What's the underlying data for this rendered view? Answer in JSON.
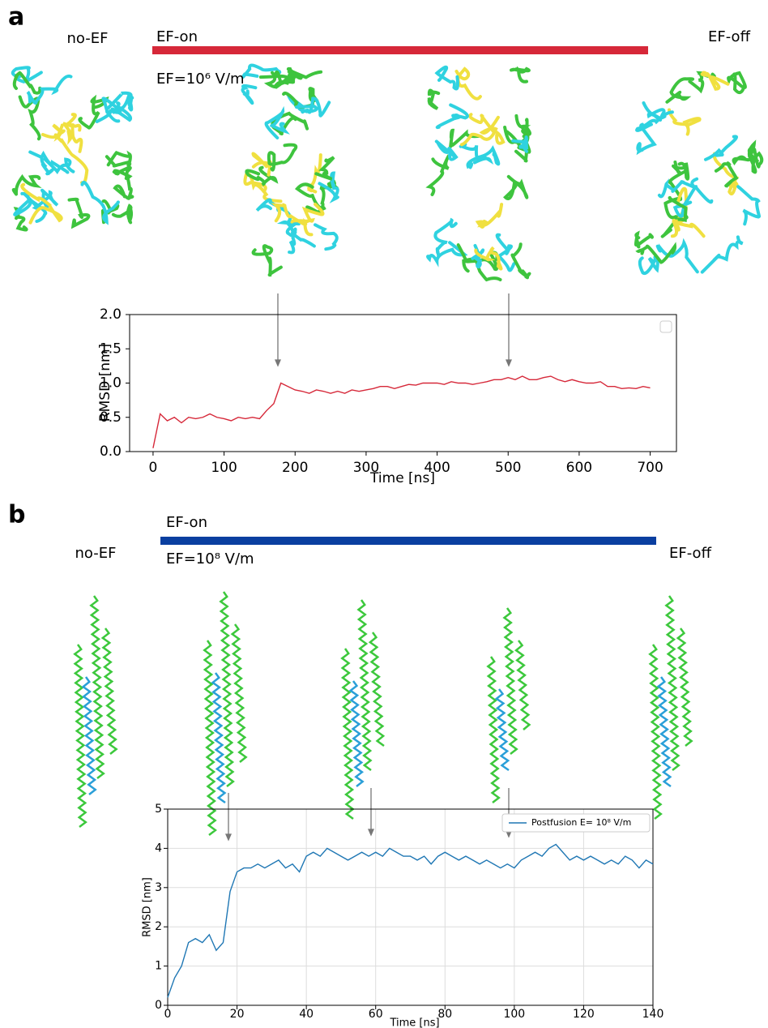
{
  "chart_data": [
    {
      "type": "line",
      "panel_label": "a",
      "annotations": [
        "no-EF",
        "EF-on",
        "EF=10⁶ V/m",
        "EF-off"
      ],
      "accent_color": "#d62839",
      "xlabel": "Time [ns]",
      "ylabel": "RMSD [nm]",
      "x": [
        0,
        10,
        20,
        30,
        40,
        50,
        60,
        70,
        80,
        90,
        100,
        110,
        120,
        130,
        140,
        150,
        160,
        170,
        180,
        190,
        200,
        210,
        220,
        230,
        240,
        250,
        260,
        270,
        280,
        290,
        300,
        310,
        320,
        330,
        340,
        350,
        360,
        370,
        380,
        390,
        400,
        410,
        420,
        430,
        440,
        450,
        460,
        470,
        480,
        490,
        500,
        510,
        520,
        530,
        540,
        550,
        560,
        570,
        580,
        590,
        600,
        610,
        620,
        630,
        640,
        650,
        660,
        670,
        680,
        690,
        700
      ],
      "series": [
        {
          "color": "#d62839",
          "values": [
            0.05,
            0.55,
            0.45,
            0.5,
            0.42,
            0.5,
            0.48,
            0.5,
            0.55,
            0.5,
            0.48,
            0.45,
            0.5,
            0.48,
            0.5,
            0.48,
            0.6,
            0.7,
            1.0,
            0.95,
            0.9,
            0.88,
            0.85,
            0.9,
            0.88,
            0.85,
            0.88,
            0.85,
            0.9,
            0.88,
            0.9,
            0.92,
            0.95,
            0.95,
            0.92,
            0.95,
            0.98,
            0.97,
            1.0,
            1.0,
            1.0,
            0.98,
            1.02,
            1.0,
            1.0,
            0.98,
            1.0,
            1.02,
            1.05,
            1.05,
            1.08,
            1.05,
            1.1,
            1.05,
            1.05,
            1.08,
            1.1,
            1.05,
            1.02,
            1.05,
            1.02,
            1.0,
            1.0,
            1.02,
            0.95,
            0.95,
            0.92,
            0.93,
            0.92,
            0.95,
            0.93
          ]
        }
      ],
      "xlim": [
        -33,
        737
      ],
      "ylim": [
        0,
        2
      ],
      "xticks": [
        0,
        100,
        200,
        300,
        400,
        500,
        600,
        700
      ],
      "yticks": [
        {
          "value": 0,
          "label": "0.0"
        },
        {
          "value": 0.5,
          "label": "0.5"
        },
        {
          "value": 1,
          "label": "1.0"
        },
        {
          "value": 1.5,
          "label": "1.5"
        },
        {
          "value": 2,
          "label": "2.0"
        }
      ],
      "grid": false
    },
    {
      "type": "line",
      "panel_label": "b",
      "annotations": [
        "no-EF",
        "EF-on",
        "EF=10⁸ V/m",
        "EF-off"
      ],
      "accent_color": "#0a3fa0",
      "xlabel": "Time [ns]",
      "ylabel": "RMSD [nm]",
      "x": [
        0,
        2,
        4,
        6,
        8,
        10,
        12,
        14,
        16,
        18,
        20,
        22,
        24,
        26,
        28,
        30,
        32,
        34,
        36,
        38,
        40,
        42,
        44,
        46,
        48,
        50,
        52,
        54,
        56,
        58,
        60,
        62,
        64,
        66,
        68,
        70,
        72,
        74,
        76,
        78,
        80,
        82,
        84,
        86,
        88,
        90,
        92,
        94,
        96,
        98,
        100,
        102,
        104,
        106,
        108,
        110,
        112,
        114,
        116,
        118,
        120,
        122,
        124,
        126,
        128,
        130,
        132,
        134,
        136,
        138,
        140
      ],
      "series": [
        {
          "name": "Postfusion E= 10⁸ V/m",
          "color": "#1f77b4",
          "values": [
            0.2,
            0.7,
            1.0,
            1.6,
            1.7,
            1.6,
            1.8,
            1.4,
            1.6,
            2.9,
            3.4,
            3.5,
            3.5,
            3.6,
            3.5,
            3.6,
            3.7,
            3.5,
            3.6,
            3.4,
            3.8,
            3.9,
            3.8,
            4.0,
            3.9,
            3.8,
            3.7,
            3.8,
            3.9,
            3.8,
            3.9,
            3.8,
            4.0,
            3.9,
            3.8,
            3.8,
            3.7,
            3.8,
            3.6,
            3.8,
            3.9,
            3.8,
            3.7,
            3.8,
            3.7,
            3.6,
            3.7,
            3.6,
            3.5,
            3.6,
            3.5,
            3.7,
            3.8,
            3.9,
            3.8,
            4.0,
            4.1,
            3.9,
            3.7,
            3.8,
            3.7,
            3.8,
            3.7,
            3.6,
            3.7,
            3.6,
            3.8,
            3.7,
            3.5,
            3.7,
            3.6
          ]
        }
      ],
      "xlim": [
        0,
        140
      ],
      "ylim": [
        0,
        5
      ],
      "xticks": [
        0,
        20,
        40,
        60,
        80,
        100,
        120,
        140
      ],
      "yticks": [
        0,
        1,
        2,
        3,
        4,
        5
      ],
      "grid": true,
      "legend": "upper right"
    }
  ]
}
